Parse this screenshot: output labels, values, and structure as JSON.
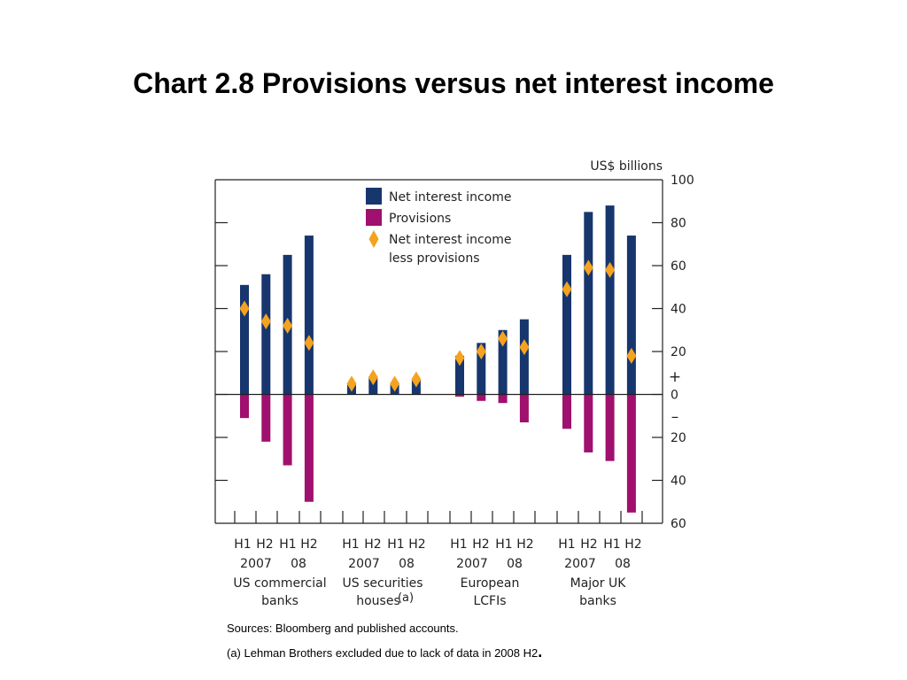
{
  "title": "Chart 2.8  Provisions versus net interest income",
  "chart_data": {
    "type": "bar",
    "unit_label": "US$ billions",
    "ylim": [
      -60,
      100
    ],
    "yticks": [
      100,
      80,
      60,
      40,
      20,
      0,
      -20,
      -40,
      -60
    ],
    "ytick_labels": [
      "100",
      "80",
      "60",
      "40",
      "20",
      "0",
      "20",
      "40",
      "60"
    ],
    "plus_sign": "+",
    "minus_sign": "–",
    "half_labels": [
      "H1",
      "H2",
      "H1",
      "H2"
    ],
    "year_labels": [
      "2007",
      "08"
    ],
    "groups": [
      {
        "lines": [
          "US commercial",
          "banks"
        ],
        "superscript": ""
      },
      {
        "lines": [
          "US securities",
          "houses"
        ],
        "superscript": "(a)"
      },
      {
        "lines": [
          "European",
          "LCFIs"
        ],
        "superscript": ""
      },
      {
        "lines": [
          "Major UK",
          "banks"
        ],
        "superscript": ""
      }
    ],
    "legend": [
      {
        "label": "Net interest income",
        "marker": "bar"
      },
      {
        "label": "Provisions",
        "marker": "bar"
      },
      {
        "label": "Net interest income\n less provisions",
        "marker": "diamond"
      }
    ],
    "legend_lines": [
      "Net interest income",
      "Provisions",
      "Net interest income",
      " less provisions"
    ],
    "series": [
      {
        "name": "Net interest income",
        "color": "#17366e",
        "values": [
          51,
          56,
          65,
          74,
          5,
          8,
          5,
          7,
          18,
          24,
          30,
          35,
          65,
          85,
          88,
          74
        ]
      },
      {
        "name": "Provisions",
        "color": "#a0106e",
        "values": [
          -11,
          -22,
          -33,
          -50,
          0,
          0,
          0,
          0,
          -1,
          -3,
          -4,
          -13,
          -16,
          -27,
          -31,
          -55
        ]
      },
      {
        "name": "Net interest income less provisions",
        "color": "#f5a21e",
        "values": [
          40,
          34,
          32,
          24,
          5,
          8,
          5,
          7,
          17,
          20,
          26,
          22,
          49,
          59,
          58,
          18
        ]
      }
    ],
    "grid": false,
    "legend_position": "top-left"
  },
  "notes": {
    "sources": "Sources:  Bloomberg and published accounts.",
    "a_text": "(a)  Lehman Brothers excluded due to lack of data in 2008 H2",
    "a_end": "."
  }
}
